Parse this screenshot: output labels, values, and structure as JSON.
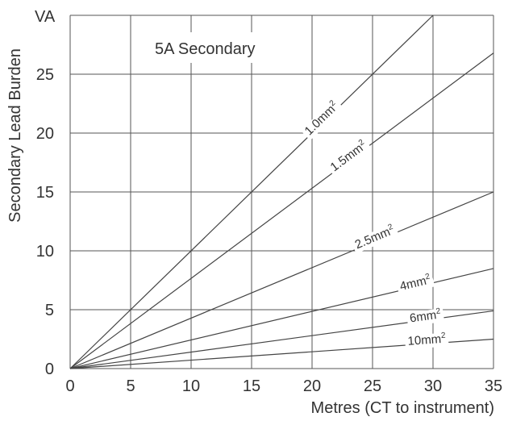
{
  "chart_data": {
    "type": "line",
    "title": "",
    "annotation": "5A Secondary",
    "xlabel": "Metres (CT to instrument)",
    "ylabel": "Secondary Lead Burden",
    "yunit": "VA",
    "xlim": [
      0,
      35
    ],
    "ylim": [
      0,
      30
    ],
    "xticks": [
      0,
      5,
      10,
      15,
      20,
      25,
      30,
      35
    ],
    "yticks": [
      0,
      5,
      10,
      15,
      20,
      25
    ],
    "grid": true,
    "legend": "none",
    "series": [
      {
        "name": "1.0mm²",
        "base": "1.0mm",
        "x": [
          0,
          30
        ],
        "y": [
          0,
          30
        ]
      },
      {
        "name": "1.5mm²",
        "base": "1.5mm",
        "x": [
          0,
          35
        ],
        "y": [
          0,
          26.8
        ]
      },
      {
        "name": "2.5mm²",
        "base": "2.5mm",
        "x": [
          0,
          35
        ],
        "y": [
          0,
          15
        ]
      },
      {
        "name": "4mm²",
        "base": "4mm",
        "x": [
          0,
          35
        ],
        "y": [
          0,
          8.5
        ]
      },
      {
        "name": "6mm²",
        "base": "6mm",
        "x": [
          0,
          35
        ],
        "y": [
          0,
          4.9
        ]
      },
      {
        "name": "10mm²",
        "base": "10mm",
        "x": [
          0,
          35
        ],
        "y": [
          0,
          2.5
        ]
      }
    ]
  }
}
